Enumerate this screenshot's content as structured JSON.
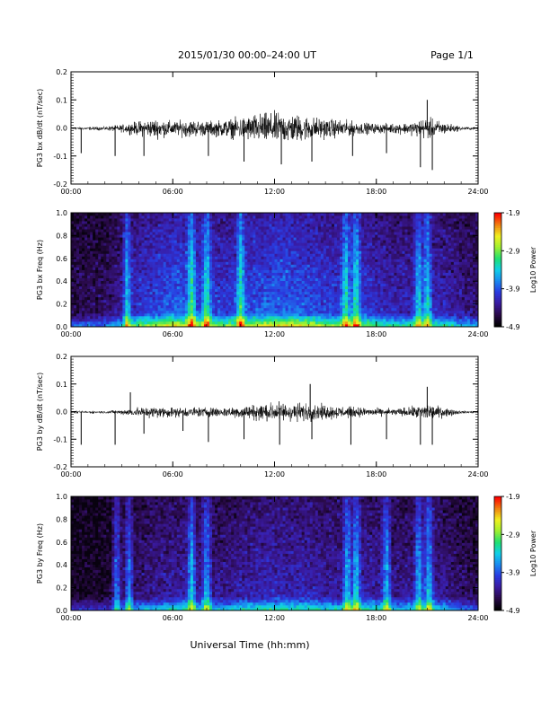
{
  "header": {
    "title": "2015/01/30  00:00–24:00 UT",
    "page": "Page 1/1"
  },
  "xaxis": {
    "label": "Universal Time (hh:mm)",
    "ticks": [
      "00:00",
      "06:00",
      "12:00",
      "18:00",
      "24:00"
    ]
  },
  "colors": {
    "trace": "#000000",
    "axes": "#000000",
    "colorscale": [
      "#000000",
      "#2a0a4a",
      "#3a1aa0",
      "#2a3ae0",
      "#1a8af0",
      "#10d0e8",
      "#20e070",
      "#a0f030",
      "#f0f020",
      "#f08010",
      "#ff0000"
    ]
  },
  "chart_data": [
    {
      "type": "line",
      "ylabel": "PG3 bx dB/dt (nT/sec)",
      "xlim": [
        0,
        24
      ],
      "ylim": [
        -0.2,
        0.2
      ],
      "yticks": [
        "0.2",
        "0.1",
        "0.0",
        "-0.1",
        "-0.2"
      ],
      "envelope": {
        "x": [
          0,
          2,
          3,
          4,
          5,
          6,
          7,
          8,
          9,
          10,
          11,
          12,
          13,
          14,
          15,
          16,
          17,
          18,
          19,
          20,
          21,
          22,
          23,
          24
        ],
        "amplitude": [
          0.005,
          0.008,
          0.015,
          0.03,
          0.04,
          0.03,
          0.035,
          0.03,
          0.035,
          0.045,
          0.06,
          0.065,
          0.06,
          0.05,
          0.04,
          0.035,
          0.025,
          0.02,
          0.02,
          0.025,
          0.045,
          0.025,
          0.008,
          0.005
        ]
      },
      "spikes": [
        {
          "x": 0.6,
          "y": -0.09
        },
        {
          "x": 2.6,
          "y": -0.1
        },
        {
          "x": 4.3,
          "y": -0.1
        },
        {
          "x": 8.1,
          "y": -0.1
        },
        {
          "x": 10.2,
          "y": -0.12
        },
        {
          "x": 12.4,
          "y": -0.13
        },
        {
          "x": 14.2,
          "y": -0.12
        },
        {
          "x": 16.6,
          "y": -0.1
        },
        {
          "x": 18.6,
          "y": -0.09
        },
        {
          "x": 20.6,
          "y": -0.14
        },
        {
          "x": 21.0,
          "y": 0.1
        },
        {
          "x": 21.3,
          "y": -0.15
        }
      ]
    },
    {
      "type": "heatmap",
      "ylabel": "PG3 bx Freq (Hz)",
      "xlim": [
        0,
        24
      ],
      "ylim": [
        0,
        1.0
      ],
      "yticks": [
        "1.0",
        "0.8",
        "0.6",
        "0.4",
        "0.2",
        "0.0"
      ],
      "colorbar": {
        "label": "Log10 Power",
        "range": [
          -4.9,
          -1.9
        ],
        "ticks": [
          "-1.9",
          "-2.9",
          "-3.9",
          "-4.9"
        ]
      },
      "activity": {
        "x": [
          0,
          2,
          3,
          4,
          5,
          6,
          7,
          8,
          9,
          10,
          11,
          12,
          13,
          14,
          15,
          16,
          17,
          18,
          19,
          20,
          21,
          22,
          23,
          24
        ],
        "level": [
          0.2,
          0.25,
          0.35,
          0.55,
          0.6,
          0.7,
          0.65,
          0.6,
          0.55,
          0.6,
          0.65,
          0.7,
          0.7,
          0.65,
          0.6,
          0.55,
          0.6,
          0.5,
          0.45,
          0.45,
          0.5,
          0.45,
          0.35,
          0.3
        ]
      },
      "bursts": [
        3.3,
        7.1,
        8.0,
        10.0,
        16.2,
        16.8,
        20.5,
        21.0
      ]
    },
    {
      "type": "line",
      "ylabel": "PG3 by dB/dt (nT/sec)",
      "xlim": [
        0,
        24
      ],
      "ylim": [
        -0.2,
        0.2
      ],
      "yticks": [
        "0.2",
        "0.1",
        "0.0",
        "-0.1",
        "-0.2"
      ],
      "envelope": {
        "x": [
          0,
          2,
          3,
          4,
          5,
          6,
          7,
          8,
          9,
          10,
          11,
          12,
          13,
          14,
          15,
          16,
          17,
          18,
          19,
          20,
          21,
          22,
          23,
          24
        ],
        "amplitude": [
          0.005,
          0.006,
          0.01,
          0.02,
          0.025,
          0.02,
          0.02,
          0.02,
          0.02,
          0.025,
          0.035,
          0.04,
          0.04,
          0.035,
          0.03,
          0.025,
          0.02,
          0.015,
          0.015,
          0.02,
          0.035,
          0.02,
          0.006,
          0.005
        ]
      },
      "spikes": [
        {
          "x": 0.6,
          "y": -0.12
        },
        {
          "x": 2.6,
          "y": -0.12
        },
        {
          "x": 3.5,
          "y": 0.07
        },
        {
          "x": 4.3,
          "y": -0.08
        },
        {
          "x": 6.6,
          "y": -0.07
        },
        {
          "x": 8.1,
          "y": -0.11
        },
        {
          "x": 10.2,
          "y": -0.1
        },
        {
          "x": 12.3,
          "y": -0.12
        },
        {
          "x": 14.1,
          "y": 0.1
        },
        {
          "x": 14.2,
          "y": -0.1
        },
        {
          "x": 16.5,
          "y": -0.12
        },
        {
          "x": 18.6,
          "y": -0.1
        },
        {
          "x": 20.6,
          "y": -0.12
        },
        {
          "x": 21.0,
          "y": 0.09
        },
        {
          "x": 21.3,
          "y": -0.12
        }
      ]
    },
    {
      "type": "heatmap",
      "ylabel": "PG3 by Freq (Hz)",
      "xlim": [
        0,
        24
      ],
      "ylim": [
        0,
        1.0
      ],
      "yticks": [
        "1.0",
        "0.8",
        "0.6",
        "0.4",
        "0.2",
        "0.0"
      ],
      "colorbar": {
        "label": "Log10 Power",
        "range": [
          -4.9,
          -1.9
        ],
        "ticks": [
          "-1.9",
          "-2.9",
          "-3.9",
          "-4.9"
        ]
      },
      "activity": {
        "x": [
          0,
          2,
          3,
          4,
          5,
          6,
          7,
          8,
          9,
          10,
          11,
          12,
          13,
          14,
          15,
          16,
          17,
          18,
          19,
          20,
          21,
          22,
          23,
          24
        ],
        "level": [
          0.1,
          0.12,
          0.2,
          0.3,
          0.35,
          0.4,
          0.4,
          0.35,
          0.35,
          0.4,
          0.45,
          0.45,
          0.45,
          0.45,
          0.4,
          0.4,
          0.45,
          0.4,
          0.35,
          0.35,
          0.4,
          0.35,
          0.25,
          0.2
        ]
      },
      "bursts": [
        2.7,
        3.4,
        7.1,
        8.0,
        16.3,
        16.8,
        18.6,
        20.5,
        21.1
      ]
    }
  ]
}
